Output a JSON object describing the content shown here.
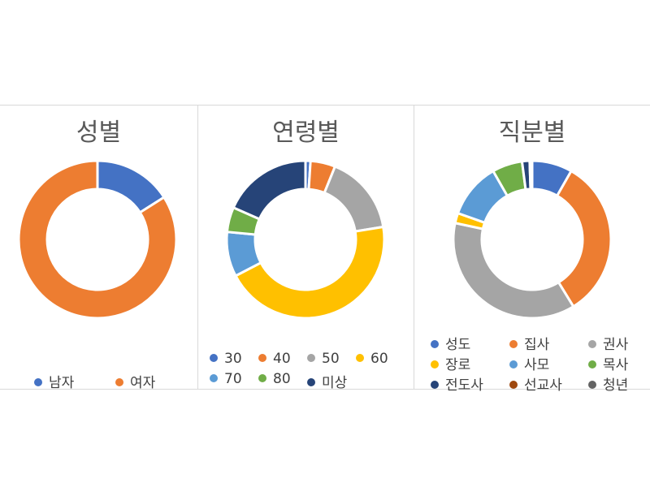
{
  "chart_data": [
    {
      "type": "pie",
      "title": "성별",
      "categories": [
        "남자",
        "여자"
      ],
      "values": [
        16,
        84
      ],
      "colors": [
        "#4472C4",
        "#ED7D31"
      ],
      "legend_position": "bottom"
    },
    {
      "type": "pie",
      "title": "연령별",
      "categories": [
        "30",
        "40",
        "50",
        "60",
        "70",
        "80",
        "미상"
      ],
      "values": [
        1,
        5,
        16,
        44,
        9,
        5,
        18
      ],
      "colors": [
        "#4472C4",
        "#ED7D31",
        "#A5A5A5",
        "#FFC000",
        "#5B9BD5",
        "#70AD47",
        "#264478"
      ],
      "legend_position": "bottom"
    },
    {
      "type": "pie",
      "title": "직분별",
      "categories": [
        "성도",
        "집사",
        "권사",
        "장로",
        "사모",
        "목사",
        "전도사",
        "선교사",
        "청년"
      ],
      "values": [
        8,
        32,
        36,
        2,
        11,
        6,
        1.5,
        0.2,
        0.3
      ],
      "colors": [
        "#4472C4",
        "#ED7D31",
        "#A5A5A5",
        "#FFC000",
        "#5B9BD5",
        "#70AD47",
        "#264478",
        "#9E480E",
        "#636363"
      ],
      "legend_position": "bottom"
    }
  ]
}
